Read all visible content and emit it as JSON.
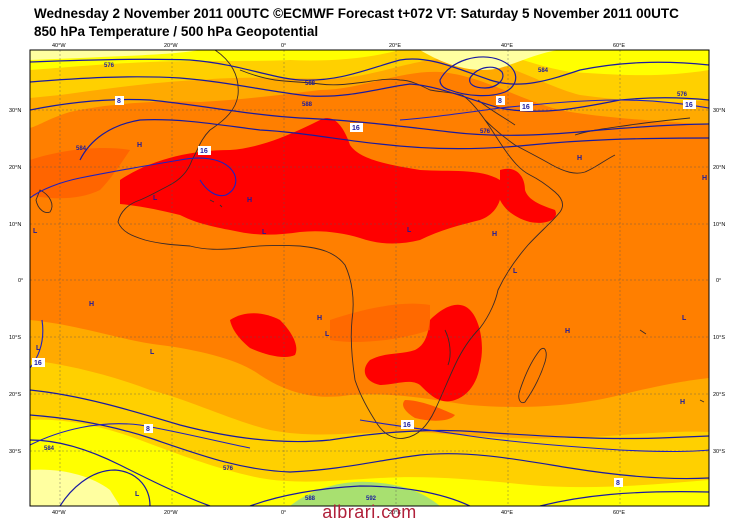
{
  "header": {
    "line1": "Wednesday 2 November 2011 00UTC ©ECMWF Forecast t+072 VT: Saturday 5 November 2011 00UTC",
    "line2": "850 hPa Temperature / 500 hPa Geopotential"
  },
  "axes": {
    "lon_labels": [
      "40°W",
      "20°W",
      "0°",
      "20°E",
      "40°E",
      "60°E"
    ],
    "lat_labels": [
      "30°N",
      "20°N",
      "10°N",
      "0°",
      "10°S",
      "20°S",
      "30°S"
    ]
  },
  "contour_labels": {
    "geopotential": [
      "576",
      "584",
      "588",
      "588",
      "584",
      "576",
      "576",
      "584",
      "592",
      "588",
      "576"
    ],
    "temperature": [
      "8",
      "16",
      "16",
      "16",
      "16",
      "8",
      "16",
      "16",
      "8",
      "8"
    ]
  },
  "pressure_centers": [
    "H",
    "H",
    "H",
    "H",
    "H",
    "H",
    "H",
    "L",
    "L",
    "L",
    "L",
    "L",
    "L",
    "L",
    "L",
    "L",
    "H",
    "H",
    "L"
  ],
  "colors": {
    "yellow_pale": "#ffffa0",
    "yellow": "#ffff00",
    "yellow_orange": "#ffd000",
    "orange_light": "#ffaa00",
    "orange": "#ff7f00",
    "orange_dark": "#ff5a00",
    "red": "#ff0000",
    "contour_blue": "#1a1aa0",
    "coast": "#3a2a2a"
  },
  "watermark": "albrari.com"
}
